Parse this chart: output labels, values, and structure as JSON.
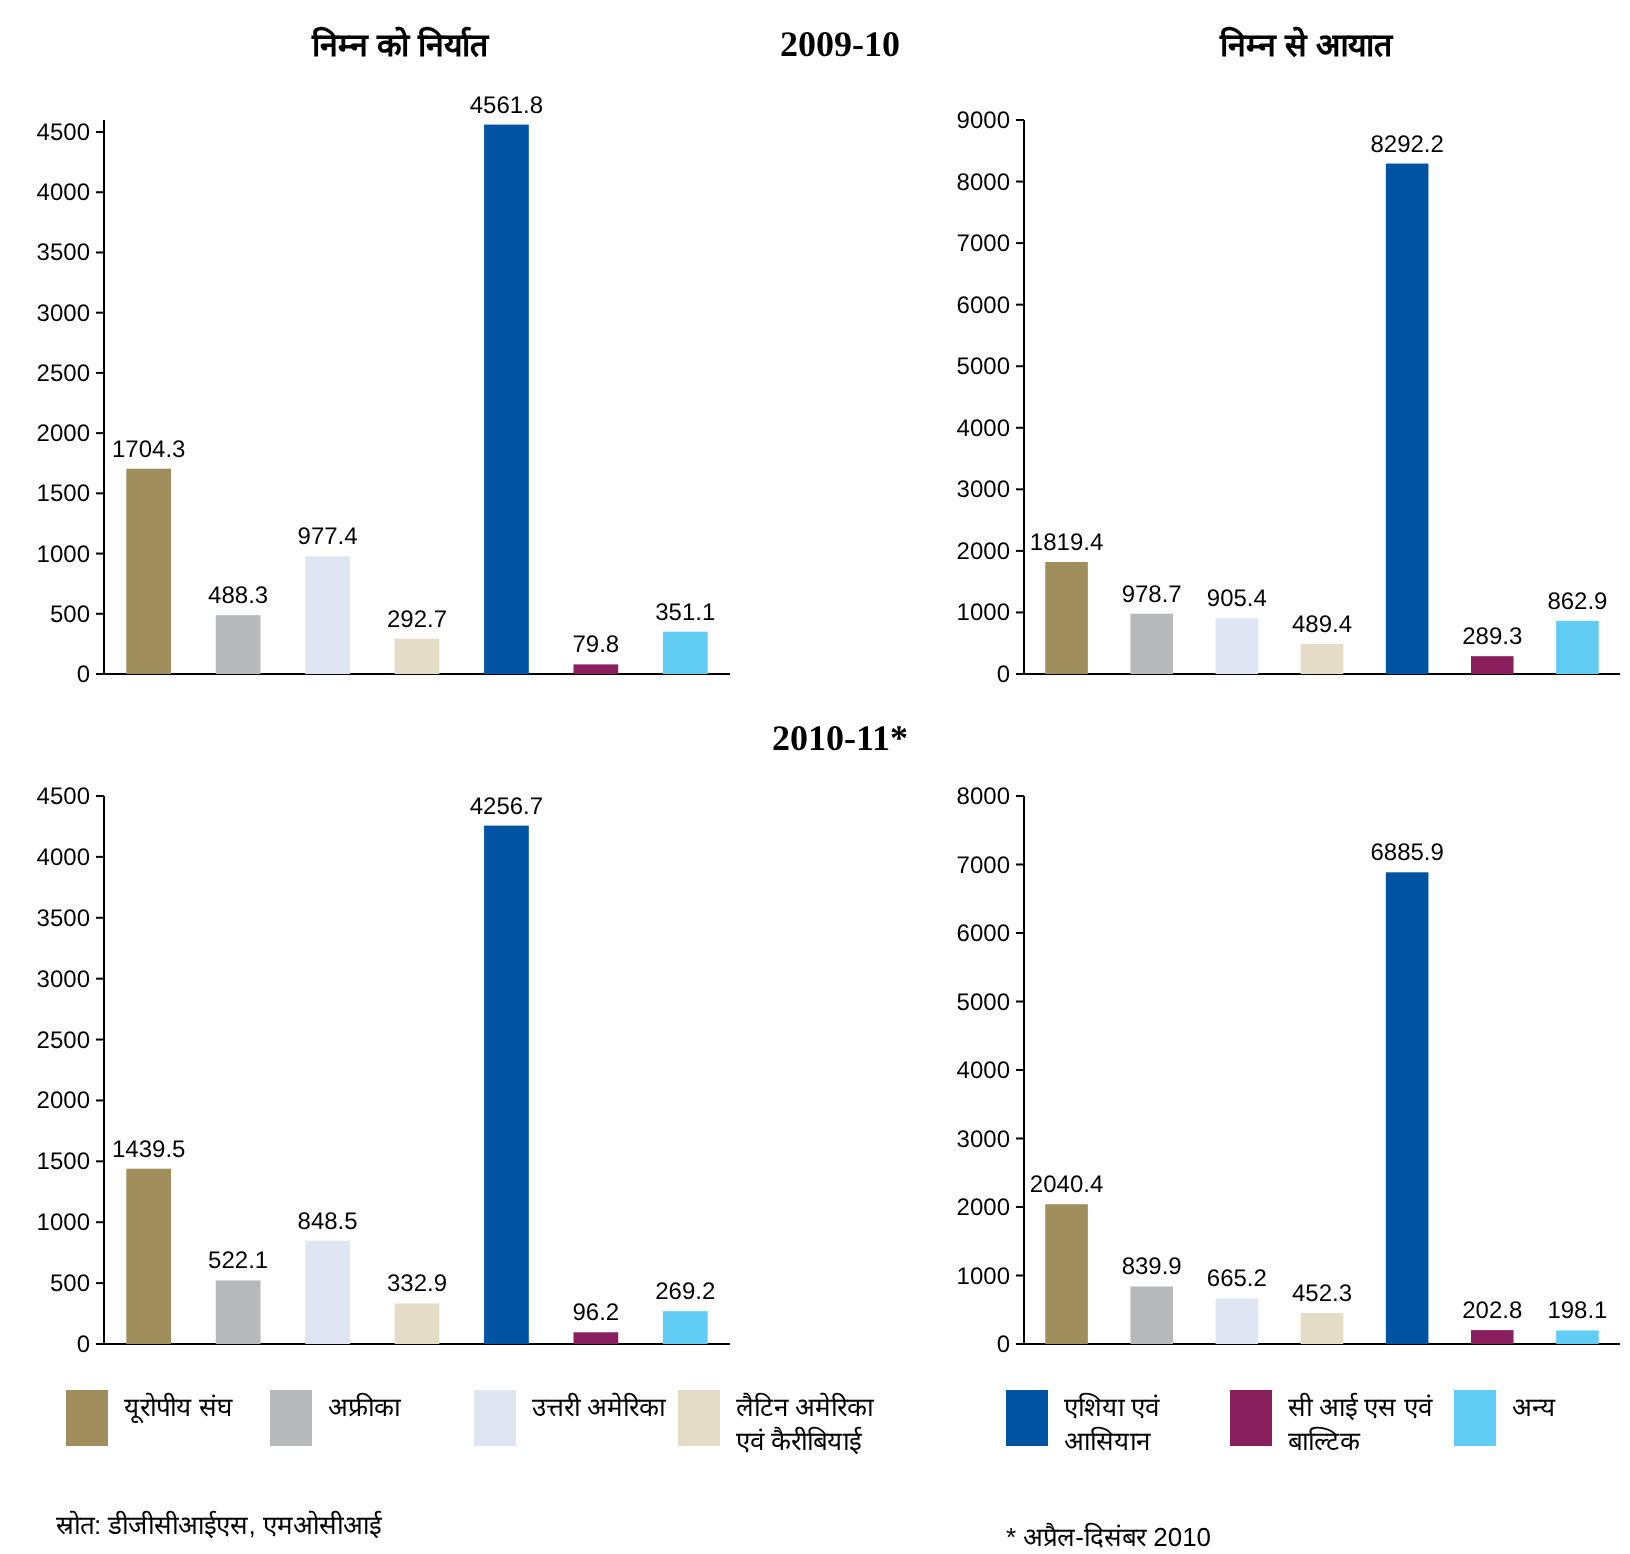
{
  "chart_data": [
    {
      "type": "bar",
      "title": "निम्न को निर्यात",
      "annotations": [
        "2009-10"
      ],
      "categories": [
        null
      ],
      "series": [
        {
          "color": "#a08f5c",
          "values": [
            1704.3
          ]
        },
        {
          "color": "#b8b9bb",
          "values": [
            488.3
          ]
        },
        {
          "color": "#dfe5f3",
          "values": [
            977.4
          ]
        },
        {
          "color": "#e5dcc8",
          "values": [
            292.7
          ]
        },
        {
          "color": "#0052a3",
          "values": [
            4561.8
          ]
        },
        {
          "color": "#8a1f5e",
          "values": [
            79.8
          ]
        },
        {
          "color": "#62cdf4",
          "values": [
            351.1
          ]
        }
      ],
      "ylim": [
        0,
        4600
      ],
      "yticks": [
        0,
        500,
        1000,
        1500,
        2000,
        2500,
        3000,
        3500,
        4000,
        4500
      ],
      "data_labels": true,
      "tick_labels": "y"
    },
    {
      "type": "bar",
      "title": "निम्न से आयात",
      "categories": [
        null
      ],
      "series": [
        {
          "color": "#a08f5c",
          "values": [
            1819.4
          ]
        },
        {
          "color": "#b8b9bb",
          "values": [
            978.7
          ]
        },
        {
          "color": "#dfe5f3",
          "values": [
            905.4
          ]
        },
        {
          "color": "#e5dcc8",
          "values": [
            489.4
          ]
        },
        {
          "color": "#0052a3",
          "values": [
            8292.2
          ]
        },
        {
          "color": "#8a1f5e",
          "values": [
            289.3
          ]
        },
        {
          "color": "#62cdf4",
          "values": [
            862.9
          ]
        }
      ],
      "ylim": [
        0,
        9000
      ],
      "yticks": [
        0,
        1000,
        2000,
        3000,
        4000,
        5000,
        6000,
        7000,
        8000,
        9000
      ],
      "data_labels": true,
      "tick_labels": "y"
    },
    {
      "type": "bar",
      "annotations": [
        "2010-11*",
        "स्रोत: डीजीसीआईएस, एमओसीआई"
      ],
      "categories": [
        null
      ],
      "series": [
        {
          "name": "यूरोपीय संघ",
          "color": "#a08f5c",
          "values": [
            1439.5
          ]
        },
        {
          "name": "अफ्रीका",
          "color": "#b8b9bb",
          "values": [
            522.1
          ]
        },
        {
          "name": "उत्तरी अमेरिका",
          "color": "#dfe5f3",
          "values": [
            848.5
          ]
        },
        {
          "name": "लैटिन अमेरिका एवं कैरीबियाई",
          "color": "#e5dcc8",
          "values": [
            332.9
          ]
        },
        {
          "name": "एशिया एवं आसियान",
          "color": "#0052a3",
          "values": [
            4256.7
          ]
        },
        {
          "name": "सी आई एस एवं बाल्टिक",
          "color": "#8a1f5e",
          "values": [
            96.2
          ]
        },
        {
          "name": "अन्य",
          "color": "#62cdf4",
          "values": [
            269.2
          ]
        }
      ],
      "ylim": [
        0,
        4500
      ],
      "yticks": [
        0,
        500,
        1000,
        1500,
        2000,
        2500,
        3000,
        3500,
        4000,
        4500
      ],
      "data_labels": true,
      "legend": "bottom",
      "tick_labels": "y"
    },
    {
      "type": "bar",
      "annotations": [
        "* अप्रैल-दिसंबर 2010"
      ],
      "categories": [
        null
      ],
      "series": [
        {
          "color": "#a08f5c",
          "values": [
            2040.4
          ]
        },
        {
          "color": "#b8b9bb",
          "values": [
            839.9
          ]
        },
        {
          "color": "#dfe5f3",
          "values": [
            665.2
          ]
        },
        {
          "color": "#e5dcc8",
          "values": [
            452.3
          ]
        },
        {
          "color": "#0052a3",
          "values": [
            6885.9
          ]
        },
        {
          "color": "#8a1f5e",
          "values": [
            202.8
          ]
        },
        {
          "color": "#62cdf4",
          "values": [
            198.1
          ]
        }
      ],
      "ylim": [
        0,
        8000
      ],
      "yticks": [
        0,
        1000,
        2000,
        3000,
        4000,
        5000,
        6000,
        7000,
        8000
      ],
      "data_labels": true,
      "tick_labels": "y"
    }
  ]
}
